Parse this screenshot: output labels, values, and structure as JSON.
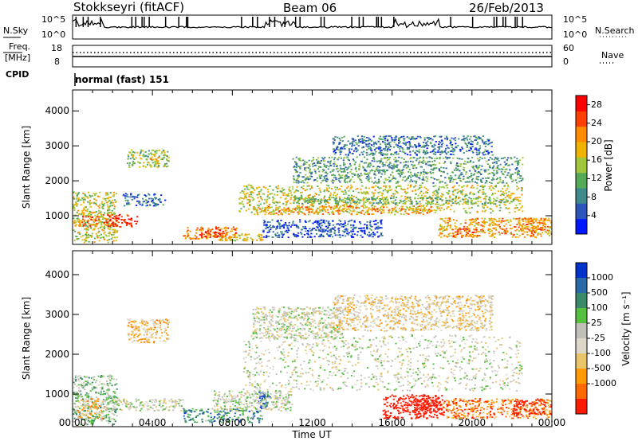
{
  "header": {
    "station": "Stokkseyri (fitACF)",
    "beam": "Beam 06",
    "date": "26/Feb/2013"
  },
  "panels": {
    "nsky": {
      "label": "N.Sky",
      "right_label": "N.Search",
      "left_ticks": [
        "10^5",
        "10^0"
      ],
      "right_ticks": [
        "10^5",
        "10^0"
      ]
    },
    "freq": {
      "label_line1": "Freq.",
      "label_line2": "[MHz]",
      "right_label": "Nave",
      "left_ticks": [
        "18",
        "8"
      ],
      "right_ticks": [
        "60",
        "0"
      ]
    },
    "cpid": {
      "label": "CPID",
      "mode": "normal (fast) 151"
    }
  },
  "colors": {
    "power_scale": [
      "#0018ff",
      "#2b55b8",
      "#3f8a8a",
      "#55aa55",
      "#a0c83c",
      "#f0b400",
      "#ff8c00",
      "#ff4000",
      "#ff0000"
    ],
    "velocity_scale": [
      "#0033cc",
      "#2a6aa8",
      "#3a8a6a",
      "#55c040",
      "#c0c0b8",
      "#ddd7c8",
      "#e8c46a",
      "#ff9a00",
      "#ff6a00",
      "#ff1a00"
    ],
    "ground_scatter": "#b4b4b4"
  },
  "chart_data": [
    {
      "type": "heatmap",
      "name": "power",
      "xlabel": "",
      "ylabel": "Slant Range [km]",
      "x_ticks": [
        "00:00",
        "04:00",
        "08:00",
        "12:00",
        "16:00",
        "20:00",
        "00:00"
      ],
      "y_ticks": [
        1000,
        2000,
        3000,
        4000
      ],
      "xlim_hours": [
        0,
        24
      ],
      "ylim_km": [
        180,
        4600
      ],
      "colorbar": {
        "label": "Power [dB]",
        "ticks": [
          4,
          8,
          12,
          16,
          20,
          24,
          28
        ],
        "range": [
          0,
          30
        ]
      },
      "echo_regions": [
        {
          "t0": 0.0,
          "t1": 2.2,
          "r0": 250,
          "r1": 1700,
          "value": 16
        },
        {
          "t0": 0.3,
          "t1": 1.3,
          "r0": 700,
          "r1": 1000,
          "value": 25
        },
        {
          "t0": 1.5,
          "t1": 3.2,
          "r0": 700,
          "r1": 1050,
          "value": 27
        },
        {
          "t0": 2.7,
          "t1": 4.8,
          "r0": 2400,
          "r1": 2900,
          "value": 14
        },
        {
          "t0": 3.8,
          "t1": 4.3,
          "r0": 2500,
          "r1": 2750,
          "value": 20
        },
        {
          "t0": 2.5,
          "t1": 4.6,
          "r0": 1300,
          "r1": 1650,
          "value": 6
        },
        {
          "t0": 5.5,
          "t1": 8.2,
          "r0": 350,
          "r1": 700,
          "value": 22
        },
        {
          "t0": 6.3,
          "t1": 7.5,
          "r0": 400,
          "r1": 650,
          "value": 28
        },
        {
          "t0": 7.0,
          "t1": 9.5,
          "r0": 300,
          "r1": 500,
          "value": 18
        },
        {
          "t0": 8.3,
          "t1": 22.5,
          "r0": 1100,
          "r1": 1900,
          "value": 16
        },
        {
          "t0": 9.0,
          "t1": 18.0,
          "r0": 1050,
          "r1": 1300,
          "value": 20
        },
        {
          "t0": 11.0,
          "t1": 21.5,
          "r0": 1350,
          "r1": 1550,
          "value": 12
        },
        {
          "t0": 11.0,
          "t1": 22.5,
          "r0": 1950,
          "r1": 2700,
          "value": 10
        },
        {
          "t0": 13.0,
          "t1": 21.0,
          "r0": 2750,
          "r1": 3300,
          "value": 7
        },
        {
          "t0": 9.5,
          "t1": 15.5,
          "r0": 400,
          "r1": 900,
          "value": 5
        },
        {
          "t0": 18.3,
          "t1": 24.0,
          "r0": 400,
          "r1": 950,
          "value": 20
        },
        {
          "t0": 19.0,
          "t1": 20.2,
          "r0": 400,
          "r1": 650,
          "value": 24
        },
        {
          "t0": 22.3,
          "t1": 23.6,
          "r0": 600,
          "r1": 950,
          "value": 22
        }
      ]
    },
    {
      "type": "heatmap",
      "name": "velocity",
      "xlabel": "Time UT",
      "ylabel": "Slant Range [km]",
      "x_ticks": [
        "00:00",
        "04:00",
        "08:00",
        "12:00",
        "16:00",
        "20:00",
        "00:00"
      ],
      "y_ticks": [
        1000,
        2000,
        3000,
        4000
      ],
      "xlim_hours": [
        0,
        24
      ],
      "ylim_km": [
        180,
        4600
      ],
      "colorbar": {
        "label": "Velocity [m s⁻¹]",
        "ticks": [
          "1000",
          "500",
          "100",
          "25",
          "-25",
          "-100",
          "-500",
          "-1000"
        ]
      },
      "echo_regions": [
        {
          "t0": 0.0,
          "t1": 2.2,
          "r0": 250,
          "r1": 1500,
          "value": 90
        },
        {
          "t0": 0.2,
          "t1": 1.5,
          "r0": 400,
          "r1": 900,
          "value": -150
        },
        {
          "t0": 1.5,
          "t1": 5.5,
          "r0": 600,
          "r1": 900,
          "value": 0
        },
        {
          "t0": 2.7,
          "t1": 4.8,
          "r0": 2300,
          "r1": 2900,
          "value": -120
        },
        {
          "t0": 5.5,
          "t1": 9.5,
          "r0": 300,
          "r1": 650,
          "value": 200
        },
        {
          "t0": 9.3,
          "t1": 9.9,
          "r0": 650,
          "r1": 1100,
          "value": 300
        },
        {
          "t0": 7.0,
          "t1": 11.0,
          "r0": 600,
          "r1": 1100,
          "value": 0
        },
        {
          "t0": 8.5,
          "t1": 22.5,
          "r0": 1100,
          "r1": 2500,
          "value": 0
        },
        {
          "t0": 9.0,
          "t1": 13.5,
          "r0": 2400,
          "r1": 3200,
          "value": 0
        },
        {
          "t0": 13.0,
          "t1": 21.0,
          "r0": 2600,
          "r1": 3500,
          "value": -80
        },
        {
          "t0": 15.5,
          "t1": 18.5,
          "r0": 400,
          "r1": 1000,
          "value": -800
        },
        {
          "t0": 17.0,
          "t1": 18.5,
          "r0": 500,
          "r1": 900,
          "value": -1000
        },
        {
          "t0": 18.5,
          "t1": 24.0,
          "r0": 400,
          "r1": 900,
          "value": -250
        },
        {
          "t0": 22.0,
          "t1": 23.6,
          "r0": 500,
          "r1": 900,
          "value": -400
        }
      ]
    }
  ]
}
